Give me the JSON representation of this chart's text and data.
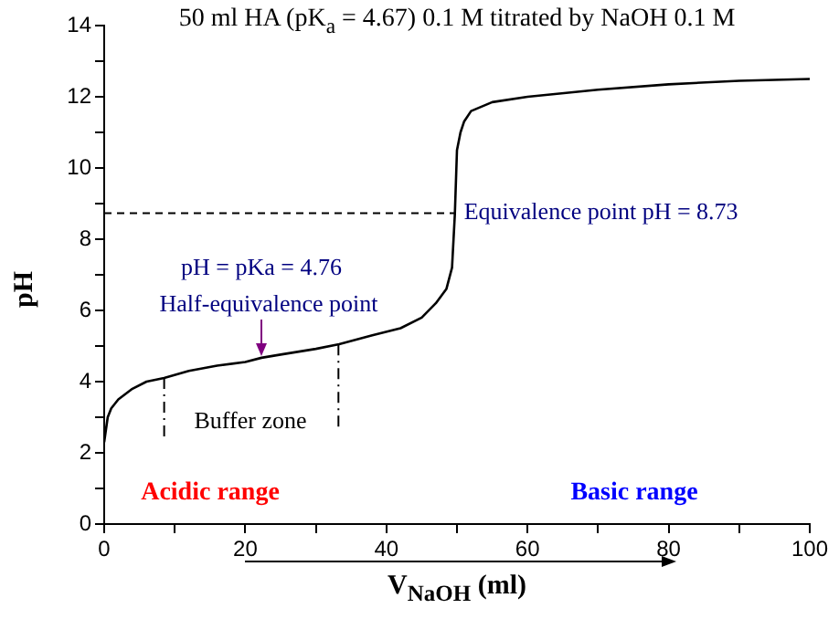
{
  "chart_data": {
    "type": "line",
    "title": "50 ml HA (pK$_{a}$ = 4.67) 0.1 M titrated by NaOH 0.1 M",
    "xlabel": "V$_{NaOH}$ (ml)",
    "ylabel": "pH",
    "x": [
      0,
      0.5,
      1,
      2,
      4,
      6,
      8.5,
      12,
      16,
      20,
      22.3,
      25,
      30,
      33.3,
      38,
      42,
      45,
      47,
      48.5,
      49.3,
      49.7,
      50,
      50.5,
      51,
      52,
      55,
      60,
      70,
      80,
      90,
      100
    ],
    "series": [
      {
        "color": "#000000",
        "values": [
          2.3,
          3.0,
          3.25,
          3.5,
          3.8,
          4.0,
          4.1,
          4.3,
          4.45,
          4.55,
          4.67,
          4.76,
          4.92,
          5.05,
          5.3,
          5.5,
          5.8,
          6.2,
          6.6,
          7.2,
          8.7,
          10.5,
          11.0,
          11.3,
          11.6,
          11.85,
          12.0,
          12.2,
          12.35,
          12.45,
          12.5
        ]
      }
    ],
    "xlim": [
      0,
      100
    ],
    "xticks": [
      0,
      {
        "value": 10,
        "label": null
      },
      20,
      {
        "value": 30,
        "label": null
      },
      40,
      {
        "value": 50,
        "label": null
      },
      60,
      {
        "value": 70,
        "label": null
      },
      80,
      {
        "value": 90,
        "label": null
      },
      100
    ],
    "ylim": [
      0,
      14
    ],
    "yticks": [
      0,
      {
        "value": 1,
        "label": null
      },
      2,
      {
        "value": 3,
        "label": null
      },
      4,
      {
        "value": 5,
        "label": null
      },
      6,
      {
        "value": 7,
        "label": null
      },
      8,
      {
        "value": 9,
        "label": null
      },
      10,
      {
        "value": 11,
        "label": null
      },
      12,
      {
        "value": 13,
        "label": null
      },
      14
    ],
    "ref_lines": [
      {
        "axis": "y",
        "value": 8.73,
        "label": "Equivalence point pH = 8.73",
        "line_style": "dashed",
        "color": "#000000"
      },
      {
        "axis": "x",
        "value": 8.5,
        "line_style": "dashed",
        "color": "#000000"
      },
      {
        "axis": "x",
        "value": 33.2,
        "line_style": "dashed",
        "color": "#000000"
      }
    ],
    "annotations": [
      "pH = pKa = 4.76",
      "Half-equivalence point",
      "Buffer zone",
      "Acidic range",
      "Basic range"
    ],
    "grid": false,
    "legend": false,
    "marker": "none",
    "line_style": "solid"
  }
}
